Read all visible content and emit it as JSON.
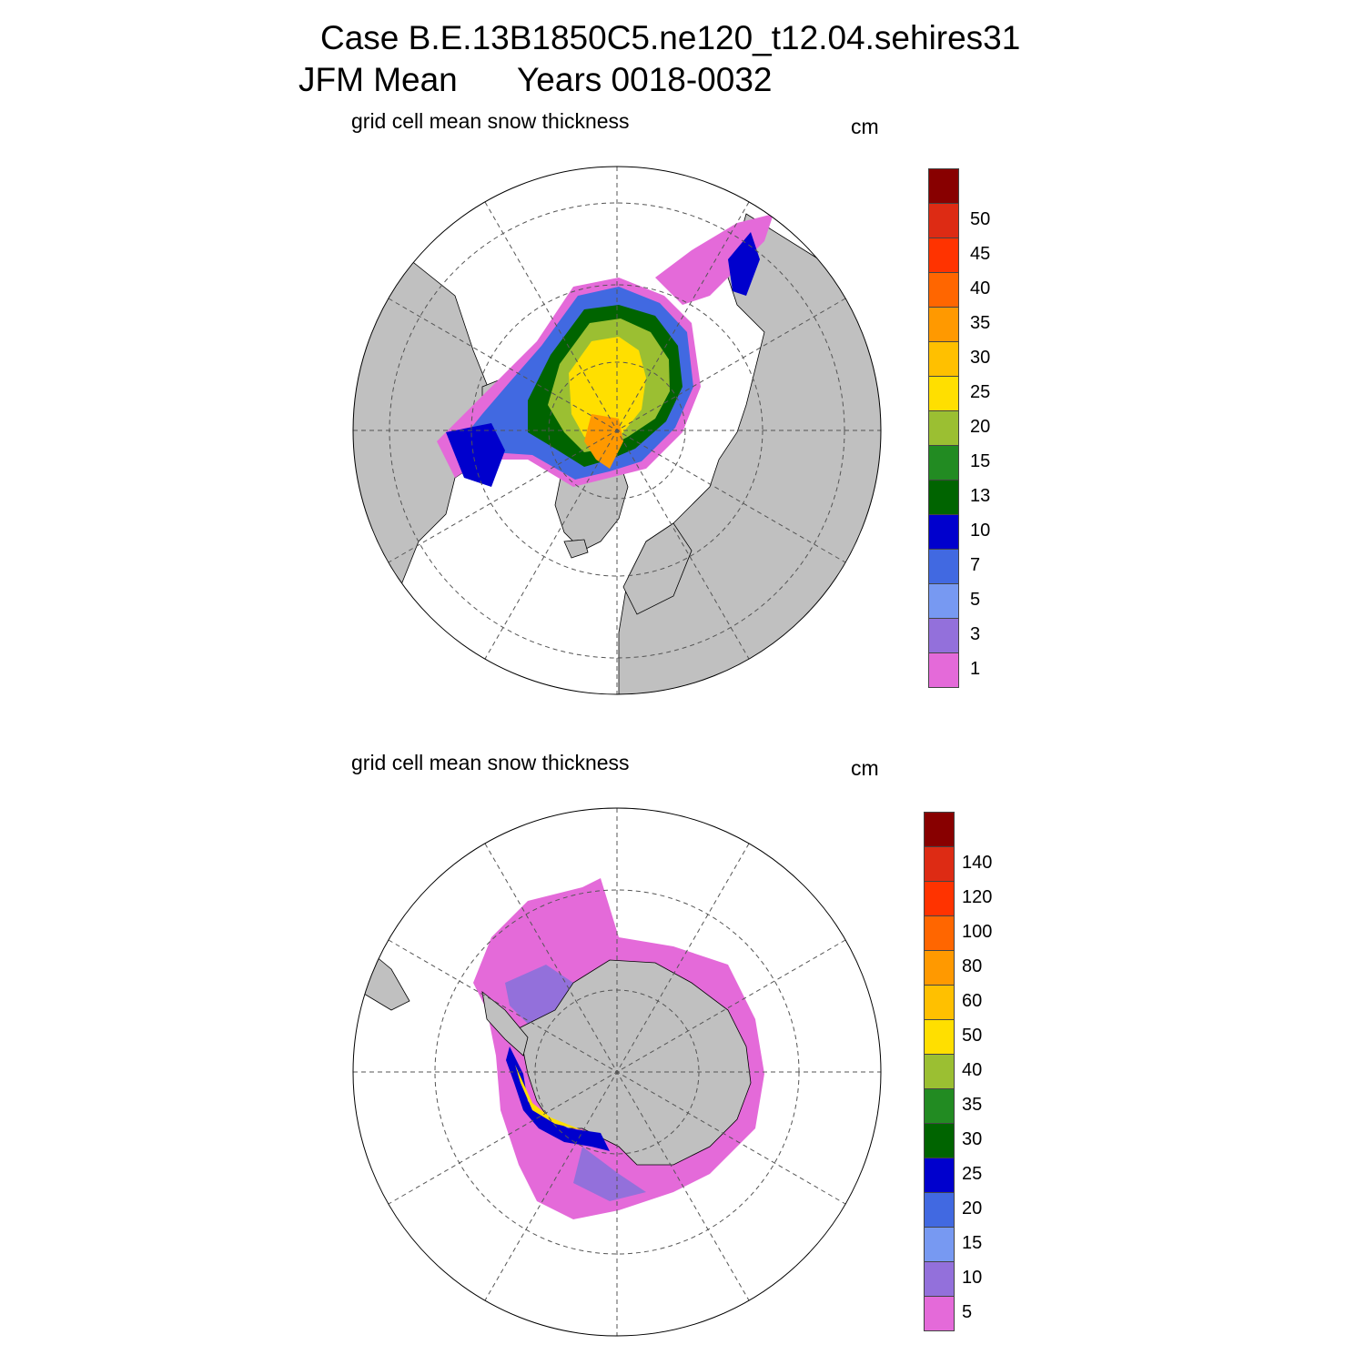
{
  "header": {
    "case_line": "Case B.E.13B1850C5.ne120_t12.04.sehires31",
    "period": "JFM Mean",
    "years": "Years 0018-0032"
  },
  "panels": [
    {
      "id": "north",
      "subtitle": "grid cell mean snow thickness",
      "units": "cm",
      "colorbar": {
        "colors": [
          "#e46ad9",
          "#9370db",
          "#7799f2",
          "#4169e1",
          "#0000cd",
          "#006400",
          "#228b22",
          "#9bbf32",
          "#ffdf00",
          "#ffc000",
          "#ff9900",
          "#ff6600",
          "#ff3300",
          "#dd2b14",
          "#880000"
        ],
        "labels": [
          "1",
          "3",
          "5",
          "7",
          "10",
          "13",
          "15",
          "20",
          "25",
          "30",
          "35",
          "40",
          "45",
          "50"
        ]
      }
    },
    {
      "id": "south",
      "subtitle": "grid cell mean snow thickness",
      "units": "cm",
      "colorbar": {
        "colors": [
          "#e46ad9",
          "#9370db",
          "#7799f2",
          "#4169e1",
          "#0000cd",
          "#006400",
          "#228b22",
          "#9bbf32",
          "#ffdf00",
          "#ffc000",
          "#ff9900",
          "#ff6600",
          "#ff3300",
          "#dd2b14",
          "#880000"
        ],
        "labels": [
          "5",
          "10",
          "15",
          "20",
          "25",
          "30",
          "35",
          "40",
          "50",
          "60",
          "80",
          "100",
          "120",
          "140"
        ]
      }
    }
  ],
  "colors": {
    "land": "#c0c0c0",
    "ocean": "#ffffff",
    "graticule": "#555555"
  }
}
